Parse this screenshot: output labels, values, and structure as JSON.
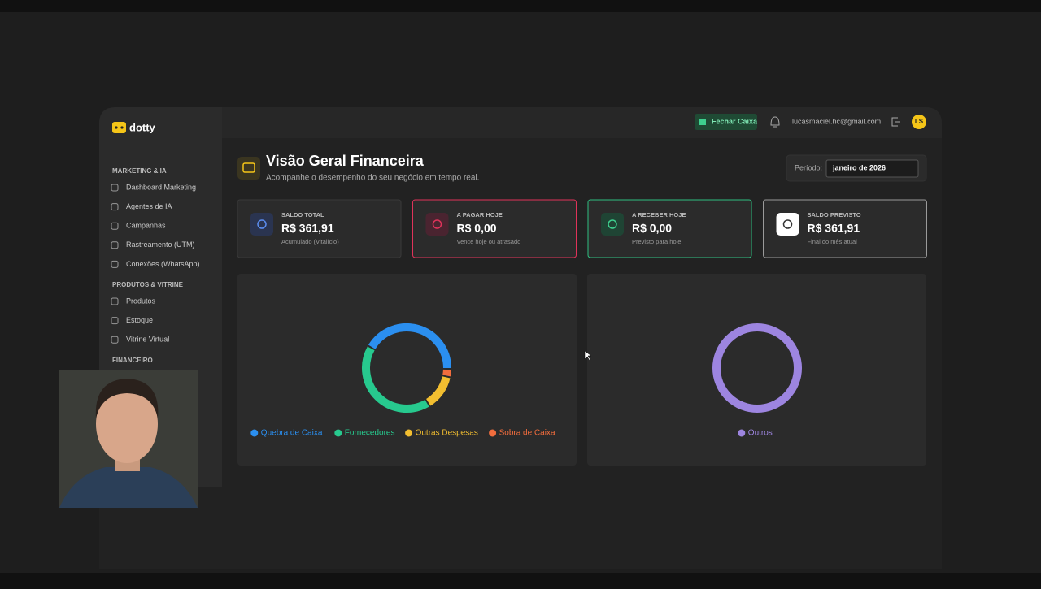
{
  "app": {
    "logo": "dotty"
  },
  "header": {
    "button": "Fechar Caixa",
    "email": "lucasmaciel.hc@gmail.com",
    "avatar": "LS"
  },
  "sidebar": [
    {
      "title": "MARKETING & IA",
      "items": [
        "Dashboard Marketing",
        "Agentes de IA",
        "Campanhas",
        "Rastreamento (UTM)",
        "Conexões (WhatsApp)"
      ]
    },
    {
      "title": "PRODUTOS & VITRINE",
      "items": [
        "Produtos",
        "Estoque",
        "Vitrine Virtual"
      ]
    },
    {
      "title": "FINANCEIRO",
      "items": []
    }
  ],
  "page": {
    "title": "Visão Geral Financeira",
    "subtitle": "Acompanhe o desempenho do seu negócio em tempo real.",
    "period_label": "Período:",
    "period_value": "janeiro de 2026"
  },
  "cards": [
    {
      "label": "SALDO TOTAL",
      "value": "R$ 361,91",
      "note": "Acumulado (Vitalício)"
    },
    {
      "label": "A PAGAR HOJE",
      "value": "R$ 0,00",
      "note": "Vence hoje ou atrasado"
    },
    {
      "label": "A RECEBER HOJE",
      "value": "R$ 0,00",
      "note": "Previsto para hoje"
    },
    {
      "label": "SALDO PREVISTO",
      "value": "R$ 361,91",
      "note": "Final do mês atual"
    }
  ],
  "chart_data": [
    {
      "type": "pie",
      "categories": [
        "Quebra de Caixa",
        "Sobra de Caixa",
        "Outras Despesas",
        "Fornecedores"
      ],
      "values": [
        42,
        3,
        13,
        42
      ],
      "colors": [
        "#2b8ff0",
        "#f26d3d",
        "#f2be30",
        "#27c98e"
      ],
      "legend_order": [
        0,
        3,
        2,
        1
      ]
    },
    {
      "type": "pie",
      "categories": [
        "Outros"
      ],
      "values": [
        100
      ],
      "colors": [
        "#9d85e0"
      ],
      "legend_order": [
        0
      ]
    }
  ]
}
